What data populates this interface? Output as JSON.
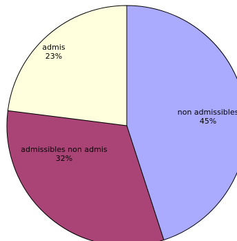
{
  "chart_data": {
    "type": "pie",
    "start": "top",
    "direction": "clockwise",
    "slices": [
      {
        "label": "non admissibles",
        "value": 45,
        "percent_label": "45%",
        "color": "#aaaaff"
      },
      {
        "label": "admissibles non admis",
        "value": 32,
        "percent_label": "32%",
        "color": "#aa4477"
      },
      {
        "label": "admis",
        "value": 23,
        "percent_label": "23%",
        "color": "#ffffdd"
      }
    ]
  }
}
